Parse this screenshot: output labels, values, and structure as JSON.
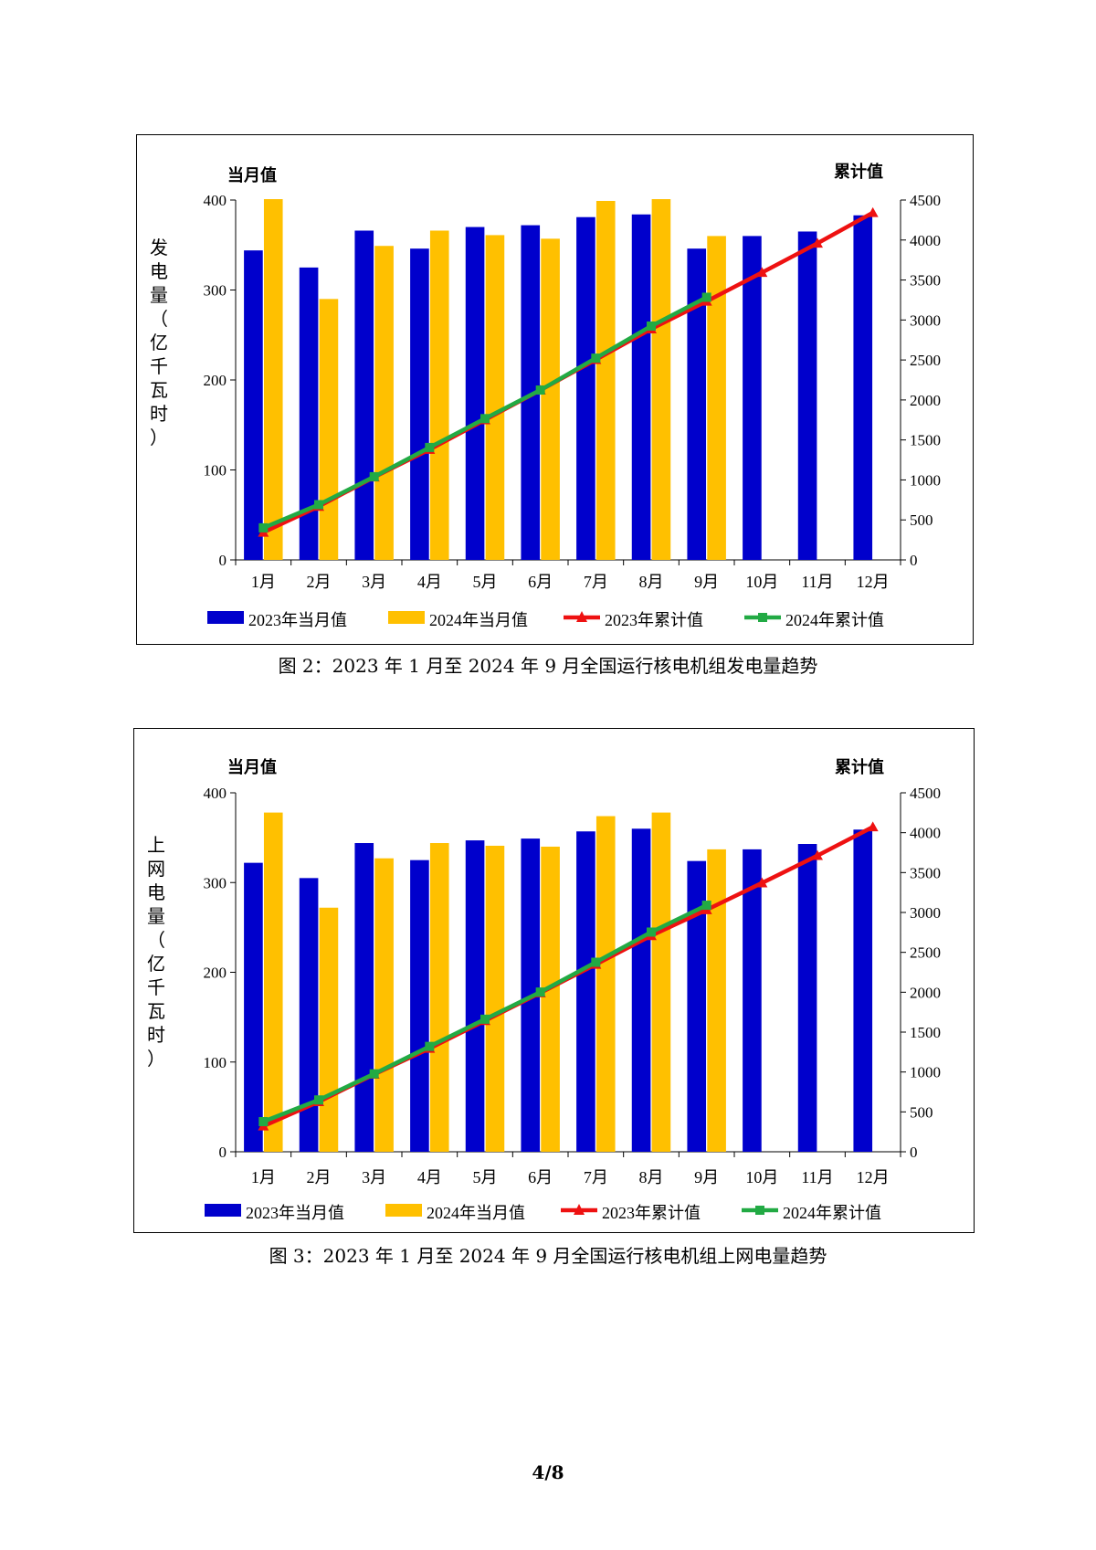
{
  "charts": {
    "chart_data": [
      {
        "type": "bar+line",
        "title": "",
        "ylabel_left": "发电量（亿千瓦时）",
        "left_axis_title": "当月值",
        "right_axis_title": "累计值",
        "categories": [
          "1月",
          "2月",
          "3月",
          "4月",
          "5月",
          "6月",
          "7月",
          "8月",
          "9月",
          "10月",
          "11月",
          "12月"
        ],
        "ylim_left": [
          0,
          400
        ],
        "yticks_left": [
          "0",
          "100",
          "200",
          "300",
          "400"
        ],
        "ylim_right": [
          0,
          4500
        ],
        "yticks_right": [
          "0",
          "500",
          "1000",
          "1500",
          "2000",
          "2500",
          "3000",
          "3500",
          "4000",
          "4500"
        ],
        "bar_series": [
          {
            "name": "2023年当月值",
            "color": "#0000CC",
            "values": [
              344,
              325,
              366,
              346,
              370,
              372,
              381,
              384,
              346,
              360,
              365,
              383
            ]
          },
          {
            "name": "2024年当月值",
            "color": "#FFC000",
            "values": [
              401,
              290,
              349,
              366,
              361,
              357,
              399,
              401,
              360,
              null,
              null,
              null
            ]
          }
        ],
        "line_series": [
          {
            "name": "2023年累计值",
            "color": "#EE1111",
            "marker": "triangle",
            "values": [
              344,
              669,
              1035,
              1381,
              1751,
              2123,
              2504,
              2888,
              3234,
              3594,
              3959,
              4342
            ]
          },
          {
            "name": "2024年累计值",
            "color": "#22AA44",
            "marker": "square",
            "values": [
              401,
              691,
              1040,
              1406,
              1767,
              2124,
              2523,
              2924,
              3284,
              null,
              null,
              null
            ]
          }
        ],
        "caption": "图 2：2023 年 1 月至 2024 年 9 月全国运行核电机组发电量趋势"
      },
      {
        "type": "bar+line",
        "title": "",
        "ylabel_left": "上网电量（亿千瓦时）",
        "left_axis_title": "当月值",
        "right_axis_title": "累计值",
        "categories": [
          "1月",
          "2月",
          "3月",
          "4月",
          "5月",
          "6月",
          "7月",
          "8月",
          "9月",
          "10月",
          "11月",
          "12月"
        ],
        "ylim_left": [
          0,
          400
        ],
        "yticks_left": [
          "0",
          "100",
          "200",
          "300",
          "400"
        ],
        "ylim_right": [
          0,
          4500
        ],
        "yticks_right": [
          "0",
          "500",
          "1000",
          "1500",
          "2000",
          "2500",
          "3000",
          "3500",
          "4000",
          "4500"
        ],
        "bar_series": [
          {
            "name": "2023年当月值",
            "color": "#0000CC",
            "values": [
              322,
              305,
              344,
              325,
              347,
              349,
              357,
              360,
              324,
              337,
              343,
              359
            ]
          },
          {
            "name": "2024年当月值",
            "color": "#FFC000",
            "values": [
              378,
              272,
              327,
              344,
              341,
              340,
              374,
              378,
              337,
              null,
              null,
              null
            ]
          }
        ],
        "line_series": [
          {
            "name": "2023年累计值",
            "color": "#EE1111",
            "marker": "triangle",
            "values": [
              322,
              627,
              971,
              1296,
              1643,
              1992,
              2349,
              2709,
              3033,
              3370,
              3713,
              4072
            ]
          },
          {
            "name": "2024年累计值",
            "color": "#22AA44",
            "marker": "square",
            "values": [
              378,
              650,
              977,
              1321,
              1662,
              2002,
              2376,
              2754,
              3091,
              null,
              null,
              null
            ]
          }
        ],
        "caption": "图 3：2023 年 1 月至 2024 年 9 月全国运行核电机组上网电量趋势"
      }
    ]
  },
  "page": {
    "number": "4/8"
  }
}
